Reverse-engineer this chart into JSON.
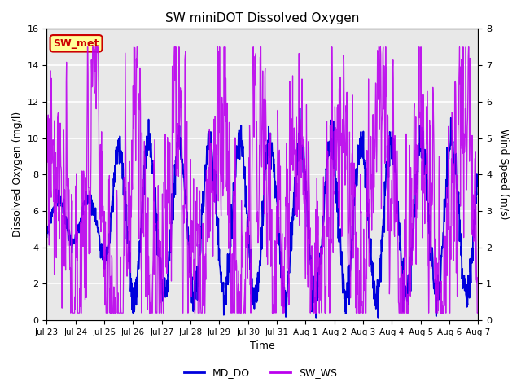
{
  "title": "SW miniDOT Dissolved Oxygen",
  "xlabel": "Time",
  "ylabel_left": "Dissolved Oxygen (mg/l)",
  "ylabel_right": "Wind Speed (m/s)",
  "ylim_left": [
    0,
    16
  ],
  "ylim_right": [
    0.0,
    8.0
  ],
  "yticks_left": [
    0,
    2,
    4,
    6,
    8,
    10,
    12,
    14,
    16
  ],
  "yticks_right": [
    0.0,
    1.0,
    2.0,
    3.0,
    4.0,
    5.0,
    6.0,
    7.0,
    8.0
  ],
  "xtick_labels": [
    "Jul 23",
    "Jul 24",
    "Jul 25",
    "Jul 26",
    "Jul 27",
    "Jul 28",
    "Jul 29",
    "Jul 30",
    "Jul 31",
    "Aug 1",
    "Aug 2",
    "Aug 3",
    "Aug 4",
    "Aug 5",
    "Aug 6",
    "Aug 7"
  ],
  "color_MD_DO": "#0000dd",
  "color_SW_WS": "#bb00ee",
  "legend_labels": [
    "MD_DO",
    "SW_WS"
  ],
  "annotation_text": "SW_met",
  "annotation_color": "#cc0000",
  "annotation_bg": "#ffff99",
  "background_color": "#e8e8e8",
  "grid_color": "#ffffff",
  "title_fontsize": 11
}
